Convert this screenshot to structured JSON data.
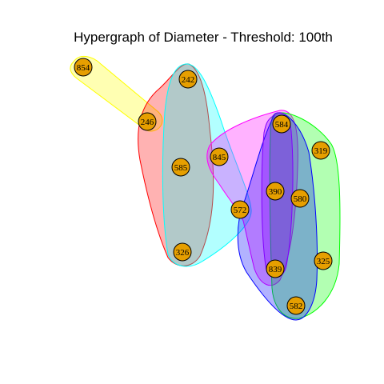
{
  "title": "Hypergraph of Diameter - Threshold: 100th",
  "node_fill": "#E69F00",
  "nodes": [
    {
      "id": "854"
    },
    {
      "id": "246"
    },
    {
      "id": "242"
    },
    {
      "id": "585"
    },
    {
      "id": "326"
    },
    {
      "id": "845"
    },
    {
      "id": "572"
    },
    {
      "id": "584"
    },
    {
      "id": "319"
    },
    {
      "id": "390"
    },
    {
      "id": "580"
    },
    {
      "id": "839"
    },
    {
      "id": "325"
    },
    {
      "id": "582"
    }
  ],
  "hyperedges": [
    {
      "color": "#FFFF00",
      "members": [
        "854",
        "246"
      ]
    },
    {
      "color": "#FF0000",
      "members": [
        "242",
        "246",
        "585",
        "326"
      ]
    },
    {
      "color": "#00FFFF",
      "members": [
        "242",
        "585",
        "326",
        "572"
      ]
    },
    {
      "color": "#FF00FF",
      "members": [
        "845",
        "572",
        "584",
        "390",
        "839"
      ]
    },
    {
      "color": "#00FF00",
      "members": [
        "584",
        "319",
        "580",
        "325",
        "582"
      ]
    },
    {
      "color": "#0000FF",
      "members": [
        "584",
        "390",
        "580",
        "839",
        "582"
      ]
    },
    {
      "color": "#8000FF",
      "members": [
        "584",
        "390",
        "839"
      ]
    }
  ]
}
